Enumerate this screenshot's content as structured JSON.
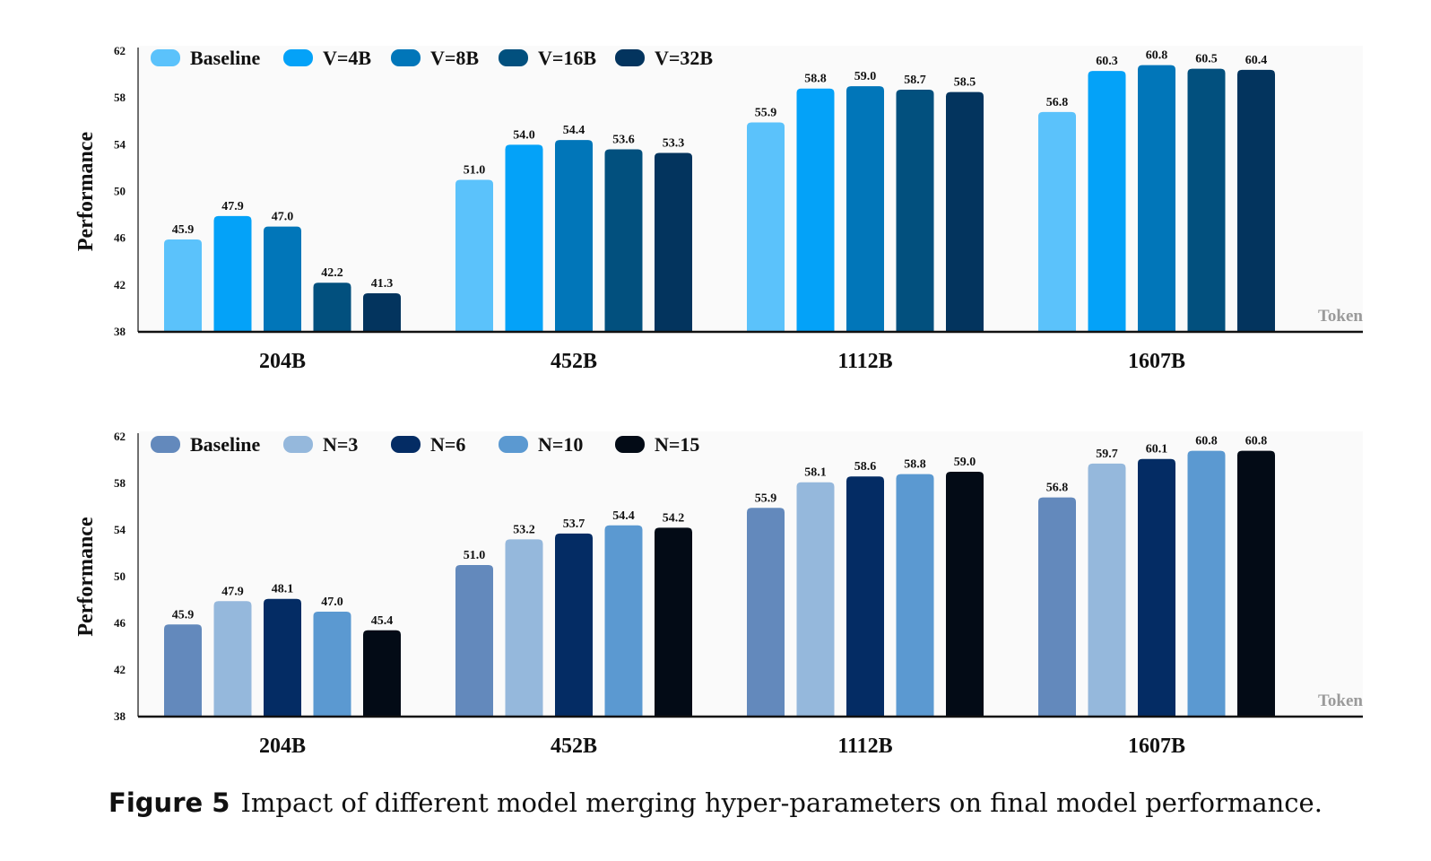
{
  "caption": {
    "label": "Figure 5",
    "text": "Impact of different model merging hyper-parameters on final model performance."
  },
  "chart_data": [
    {
      "type": "bar",
      "categories": [
        "204B",
        "452B",
        "1112B",
        "1607B"
      ],
      "xlabel": "Token",
      "ylabel": "Performance",
      "ylim": [
        38,
        62
      ],
      "yticks": [
        38,
        42,
        46,
        50,
        54,
        58,
        62
      ],
      "grid": false,
      "legend_position": "top-left",
      "series": [
        {
          "name": "Baseline",
          "color": "#5bc2fb",
          "values": [
            45.9,
            51.0,
            55.9,
            56.8
          ]
        },
        {
          "name": "V=4B",
          "color": "#04a2f8",
          "values": [
            47.9,
            54.0,
            58.8,
            60.3
          ]
        },
        {
          "name": "V=8B",
          "color": "#0176b9",
          "values": [
            47.0,
            54.4,
            59.0,
            60.8
          ]
        },
        {
          "name": "V=16B",
          "color": "#02507e",
          "values": [
            42.2,
            53.6,
            58.7,
            60.5
          ]
        },
        {
          "name": "V=32B",
          "color": "#03345e",
          "values": [
            41.3,
            53.3,
            58.5,
            60.4
          ]
        }
      ],
      "labels": [
        [
          "45.9",
          "51.0",
          "55.9",
          "56.8"
        ],
        [
          "47.9",
          "54.0",
          "58.8",
          "60.3"
        ],
        [
          "47.0",
          "54.4",
          "59.0",
          "60.8"
        ],
        [
          "42.2",
          "53.6",
          "58.7",
          "60.5"
        ],
        [
          "41.3",
          "53.3",
          "58.5",
          "60.4"
        ]
      ]
    },
    {
      "type": "bar",
      "categories": [
        "204B",
        "452B",
        "1112B",
        "1607B"
      ],
      "xlabel": "Token",
      "ylabel": "Performance",
      "ylim": [
        38,
        62
      ],
      "yticks": [
        38,
        42,
        46,
        50,
        54,
        58,
        62
      ],
      "grid": false,
      "legend_position": "top-left",
      "series": [
        {
          "name": "Baseline",
          "color": "#6389bc",
          "values": [
            45.9,
            51.0,
            55.9,
            56.8
          ]
        },
        {
          "name": "N=3",
          "color": "#95b8dc",
          "values": [
            47.9,
            53.2,
            58.1,
            59.7
          ]
        },
        {
          "name": "N=6",
          "color": "#042c64",
          "values": [
            48.1,
            53.7,
            58.6,
            60.1
          ]
        },
        {
          "name": "N=10",
          "color": "#5b99d1",
          "values": [
            47.0,
            54.4,
            58.8,
            60.8
          ]
        },
        {
          "name": "N=15",
          "color": "#030b16",
          "values": [
            45.4,
            54.2,
            59.0,
            60.8
          ]
        }
      ],
      "labels": [
        [
          "45.9",
          "51.0",
          "55.9",
          "56.8"
        ],
        [
          "47.9",
          "53.2",
          "58.1",
          "59.7"
        ],
        [
          "48.1",
          "53.7",
          "58.6",
          "60.1"
        ],
        [
          "47.0",
          "54.4",
          "58.8",
          "60.8"
        ],
        [
          "45.4",
          "54.2",
          "59.0",
          "60.8"
        ]
      ]
    }
  ]
}
